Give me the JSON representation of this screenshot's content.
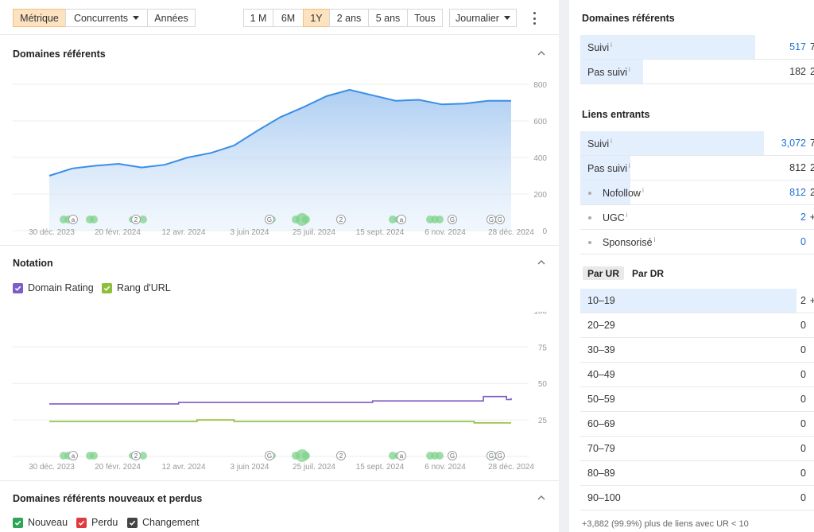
{
  "toolbar": {
    "view_tabs": [
      "Métrique",
      "Concurrents",
      "Années"
    ],
    "ranges": [
      "1 M",
      "6M",
      "1Y",
      "2 ans",
      "5 ans",
      "Tous"
    ],
    "granularity": "Journalier"
  },
  "sections": {
    "referring_domains": "Domaines référents",
    "rating": "Notation",
    "new_lost": "Domaines référents nouveaux et perdus"
  },
  "legend_rating": {
    "dr": "Domain Rating",
    "ur": "Rang d'URL"
  },
  "legend_newlost": {
    "new": "Nouveau",
    "lost": "Perdu",
    "change": "Changement"
  },
  "colors": {
    "accent_orange": "#fde2bf",
    "line_blue": "#3a8ee6",
    "dr_purple": "#7d5cc6",
    "ur_green": "#8fbf3a",
    "new_green": "#2fa55a",
    "lost_red": "#e0393e",
    "change_dark": "#444444"
  },
  "chart_data": [
    {
      "type": "area",
      "title": "Domaines référents",
      "x_ticks": [
        "30 déc. 2023",
        "20 févr. 2024",
        "12 avr. 2024",
        "3 juin 2024",
        "25 juil. 2024",
        "15 sept. 2024",
        "6 nov. 2024",
        "28 déc. 2024"
      ],
      "y_ticks": [
        "800",
        "600",
        "400",
        "200",
        "0"
      ],
      "ylim": [
        0,
        800
      ],
      "x": [
        0,
        5,
        10,
        15,
        20,
        25,
        30,
        35,
        40,
        45,
        50,
        55,
        60,
        65,
        70,
        75,
        80,
        85,
        90,
        95,
        100
      ],
      "values": [
        300,
        340,
        355,
        365,
        345,
        360,
        400,
        425,
        465,
        545,
        620,
        675,
        735,
        770,
        740,
        710,
        715,
        690,
        695,
        710,
        710
      ],
      "annotations": [
        "a",
        "2",
        "G",
        "2",
        "a",
        "G",
        "G",
        "G"
      ]
    },
    {
      "type": "line",
      "title": "Notation",
      "x_ticks": [
        "30 déc. 2023",
        "20 févr. 2024",
        "12 avr. 2024",
        "3 juin 2024",
        "25 juil. 2024",
        "15 sept. 2024",
        "6 nov. 2024",
        "28 déc. 2024"
      ],
      "y_ticks": [
        "100",
        "75",
        "50",
        "25"
      ],
      "ylim": [
        0,
        100
      ],
      "series": [
        {
          "name": "Domain Rating",
          "x": [
            0,
            25,
            28,
            30,
            55,
            70,
            93,
            94,
            98,
            99,
            100
          ],
          "values": [
            36,
            36,
            37,
            37,
            37,
            38,
            38,
            41,
            41,
            39,
            40
          ]
        },
        {
          "name": "Rang d'URL",
          "x": [
            0,
            30,
            32,
            40,
            50,
            60,
            90,
            92,
            100
          ],
          "values": [
            24,
            24,
            25,
            24,
            24,
            24,
            24,
            23,
            23
          ]
        }
      ]
    }
  ],
  "right": {
    "referring_domains": {
      "title": "Domaines référents",
      "rows": [
        {
          "label": "Suivi",
          "value": "517",
          "extra": "7",
          "share": 0.81
        },
        {
          "label": "Pas suivi",
          "value": "182",
          "extra": "2",
          "share": 0.29
        }
      ]
    },
    "backlinks": {
      "title": "Liens entrants",
      "rows": [
        {
          "label": "Suivi",
          "value": "3,072",
          "extra": "7",
          "share": 0.85
        },
        {
          "label": "Pas suivi",
          "value": "812",
          "extra": "2",
          "share": 0.23
        }
      ],
      "subrows": [
        {
          "label": "Nofollow",
          "value": "812",
          "extra": "2",
          "share": 0.23
        },
        {
          "label": "UGC",
          "value": "2",
          "extra": "+",
          "share": 0
        },
        {
          "label": "Sponsorisé",
          "value": "0",
          "extra": "",
          "share": 0
        }
      ]
    },
    "rank_tabs": [
      "Par UR",
      "Par DR"
    ],
    "ur_rows": [
      {
        "label": "10–19",
        "value": "2",
        "extra": "+",
        "share": 1.0
      },
      {
        "label": "20–29",
        "value": "0",
        "extra": ""
      },
      {
        "label": "30–39",
        "value": "0",
        "extra": ""
      },
      {
        "label": "40–49",
        "value": "0",
        "extra": ""
      },
      {
        "label": "50–59",
        "value": "0",
        "extra": ""
      },
      {
        "label": "60–69",
        "value": "0",
        "extra": ""
      },
      {
        "label": "70–79",
        "value": "0",
        "extra": ""
      },
      {
        "label": "80–89",
        "value": "0",
        "extra": ""
      },
      {
        "label": "90–100",
        "value": "0",
        "extra": ""
      }
    ],
    "footnote": "+3,882 (99.9%) plus de liens avec UR < 10"
  }
}
